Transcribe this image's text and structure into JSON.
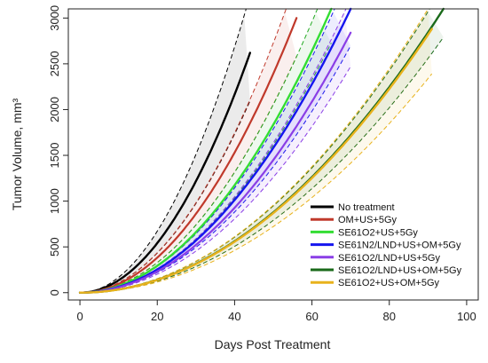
{
  "chart_data": {
    "type": "line",
    "title": "",
    "xlabel": "Days Post Treatment",
    "ylabel": "Tumor Volume, mm³",
    "xlim": [
      -3,
      103
    ],
    "ylim": [
      -80,
      3100
    ],
    "x_ticks": [
      0,
      20,
      40,
      60,
      80,
      100
    ],
    "y_ticks": [
      0,
      500,
      1000,
      1500,
      2000,
      2500,
      3000
    ],
    "grid": false,
    "legend_position": "bottom-right",
    "series": [
      {
        "name": "No treatment",
        "color": "#000000",
        "line_width": 2.4,
        "end_day": 44,
        "end_volume": 2620,
        "band_upper": 1.24,
        "band_lower": 0.8,
        "band_color": "#000000"
      },
      {
        "name": "OM+US+5Gy",
        "color": "#c0392b",
        "line_width": 2.2,
        "end_day": 56,
        "end_volume": 3000,
        "band_upper": 1.14,
        "band_lower": 0.86,
        "band_color": "#c0392b"
      },
      {
        "name": "SE61O2+US+5Gy",
        "color": "#33dd33",
        "line_width": 2.4,
        "end_day": 65,
        "end_volume": 3100,
        "band_upper": 1.12,
        "band_lower": 0.88,
        "band_color": "#22aa22"
      },
      {
        "name": "SE61N2/LND+US+OM+5Gy",
        "color": "#1515ee",
        "line_width": 2.4,
        "end_day": 70,
        "end_volume": 3100,
        "band_upper": 1.13,
        "band_lower": 0.87,
        "band_color": "#1515ee"
      },
      {
        "name": "SE61O2/LND+US+5Gy",
        "color": "#8a3ee6",
        "line_width": 2.2,
        "end_day": 70,
        "end_volume": 2840,
        "band_upper": 1.13,
        "band_lower": 0.87,
        "band_color": "#8a3ee6"
      },
      {
        "name": "SE61O2/LND+US+OM+5Gy",
        "color": "#1a6a1a",
        "line_width": 2.4,
        "end_day": 94,
        "end_volume": 3100,
        "band_upper": 1.08,
        "band_lower": 0.9,
        "band_color": "#1a6a1a"
      },
      {
        "name": "SE61O2+US+OM+5Gy",
        "color": "#e8b21c",
        "line_width": 2.4,
        "end_day": 91,
        "end_volume": 2880,
        "band_upper": 1.1,
        "band_lower": 0.83,
        "band_color": "#e8b21c"
      }
    ]
  }
}
